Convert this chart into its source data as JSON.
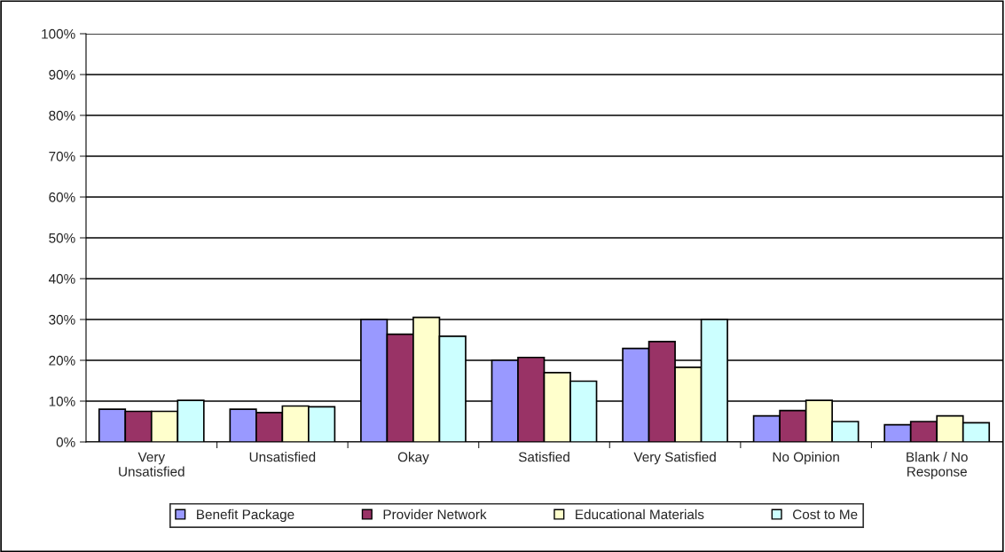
{
  "chart_data": {
    "type": "bar",
    "categories": [
      "Very\nUnsatisfied",
      "Unsatisfied",
      "Okay",
      "Satisfied",
      "Very Satisfied",
      "No Opinion",
      "Blank / No\nResponse"
    ],
    "series": [
      {
        "name": "Benefit Package",
        "color": "#9999ff",
        "values": [
          8.0,
          8.0,
          30.0,
          20.0,
          22.9,
          6.4,
          4.2
        ]
      },
      {
        "name": "Provider Network",
        "color": "#993366",
        "values": [
          7.5,
          7.2,
          26.4,
          20.7,
          24.6,
          7.7,
          5.0
        ]
      },
      {
        "name": "Educational Materials",
        "color": "#ffffcc",
        "values": [
          7.5,
          8.8,
          30.5,
          17.0,
          18.3,
          10.2,
          6.4
        ]
      },
      {
        "name": "Cost to Me",
        "color": "#ccffff",
        "values": [
          10.2,
          8.6,
          25.9,
          14.9,
          30.0,
          5.0,
          4.7
        ]
      }
    ],
    "ylim": [
      0,
      100
    ],
    "yticks": [
      {
        "value": 0,
        "label": "0%"
      },
      {
        "value": 10,
        "label": "10%"
      },
      {
        "value": 20,
        "label": "20%"
      },
      {
        "value": 30,
        "label": "30%"
      },
      {
        "value": 40,
        "label": "40%"
      },
      {
        "value": 50,
        "label": "50%"
      },
      {
        "value": 60,
        "label": "60%"
      },
      {
        "value": 70,
        "label": "70%"
      },
      {
        "value": 80,
        "label": "80%"
      },
      {
        "value": 90,
        "label": "90%"
      },
      {
        "value": 100,
        "label": "100%"
      }
    ],
    "grid": "y",
    "legend": "bottom"
  }
}
